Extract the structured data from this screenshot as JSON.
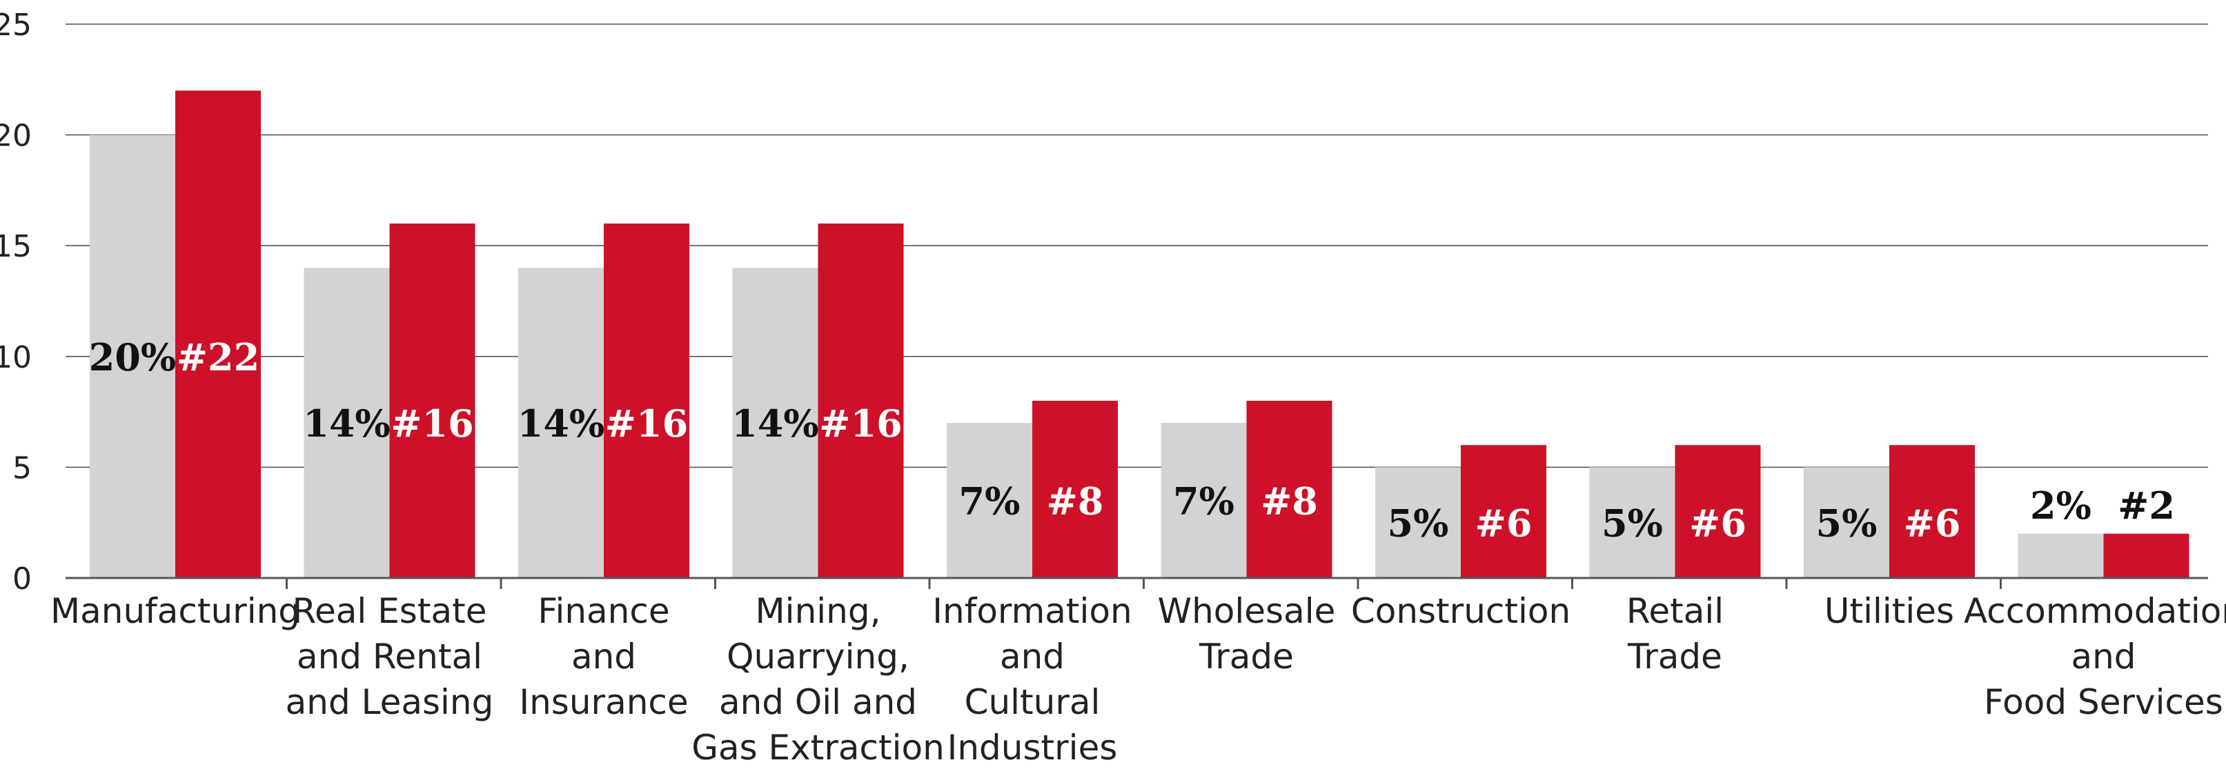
{
  "chart_data": {
    "type": "bar",
    "title": "",
    "xlabel": "",
    "ylabel": "",
    "ylim": [
      0,
      25
    ],
    "yticks": [
      0,
      5,
      10,
      15,
      20,
      25
    ],
    "grid": true,
    "categories": [
      [
        "Manufacturing"
      ],
      [
        "Real Estate",
        "and Rental",
        "and Leasing"
      ],
      [
        "Finance",
        "and",
        "Insurance"
      ],
      [
        "Mining,",
        "Quarrying,",
        "and Oil and",
        "Gas Extraction"
      ],
      [
        "Information",
        "and",
        "Cultural",
        "Industries"
      ],
      [
        "Wholesale",
        "Trade"
      ],
      [
        "Construction"
      ],
      [
        "Retail",
        "Trade"
      ],
      [
        "Utilities"
      ],
      [
        "Accommodation",
        "and",
        "Food Services"
      ]
    ],
    "series": [
      {
        "color": "#d3d3d3",
        "label_color": "#111111",
        "values": [
          20,
          14,
          14,
          14,
          7,
          7,
          5,
          5,
          5,
          2
        ],
        "labels": [
          "20%",
          "14%",
          "14%",
          "14%",
          "7%",
          "7%",
          "5%",
          "5%",
          "5%",
          "2%"
        ]
      },
      {
        "color": "#cc1128",
        "label_color": "#ffffff",
        "values": [
          22,
          16,
          16,
          16,
          8,
          8,
          6,
          6,
          6,
          2
        ],
        "labels": [
          "#22",
          "#16",
          "#16",
          "#16",
          "#8",
          "#8",
          "#6",
          "#6",
          "#6",
          "#2"
        ]
      }
    ]
  }
}
